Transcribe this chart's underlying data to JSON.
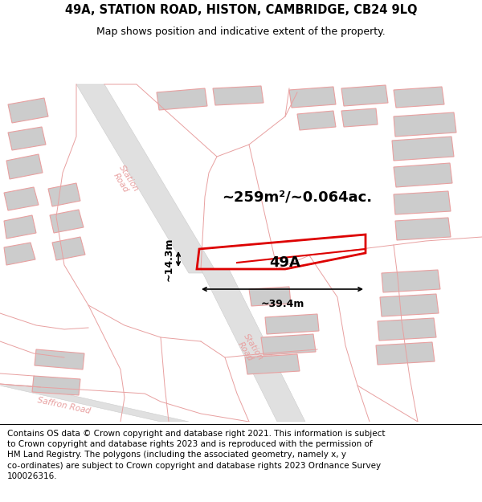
{
  "title": "49A, STATION ROAD, HISTON, CAMBRIDGE, CB24 9LQ",
  "subtitle": "Map shows position and indicative extent of the property.",
  "footer": "Contains OS data © Crown copyright and database right 2021. This information is subject\nto Crown copyright and database rights 2023 and is reproduced with the permission of\nHM Land Registry. The polygons (including the associated geometry, namely x, y\nco-ordinates) are subject to Crown copyright and database rights 2023 Ordnance Survey\n100026316.",
  "area_label": "~259m²/~0.064ac.",
  "property_label": "49A",
  "dim_width": "~39.4m",
  "dim_height": "~14.3m",
  "map_bg": "#f2f2f2",
  "road_fill": "#e0e0e0",
  "building_fill": "#cccccc",
  "property_line_color": "#dd0000",
  "map_line_color": "#e8a0a0",
  "road_line_color": "#cccccc",
  "header_bg": "#ffffff",
  "footer_bg": "#ffffff",
  "title_fontsize": 10.5,
  "subtitle_fontsize": 9,
  "footer_fontsize": 7.5
}
